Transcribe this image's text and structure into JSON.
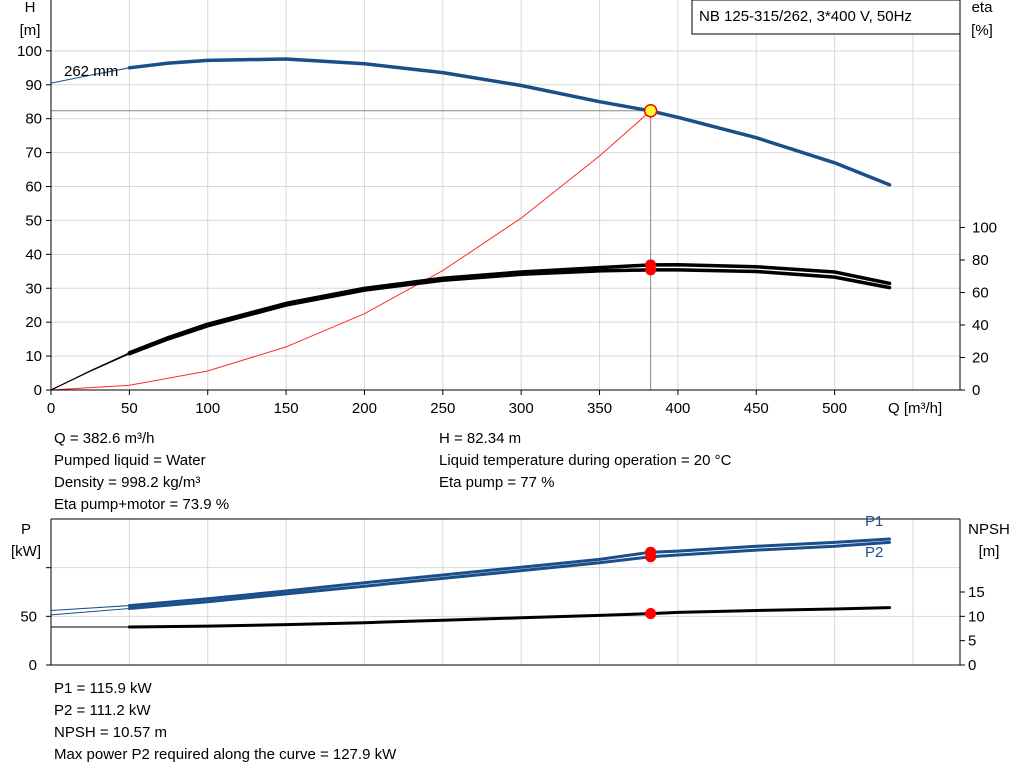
{
  "chart_data": [
    {
      "type": "line",
      "title": "NB 125-315/262, 3*400 V, 50Hz",
      "xlabel": "Q [m³/h]",
      "ylabel": "H\n[m]",
      "ylabel_right": "eta\n[%]",
      "xlim": [
        0,
        580
      ],
      "ylim": [
        0,
        115
      ],
      "y2lim": [
        0,
        100
      ],
      "x_ticks": [
        0,
        50,
        100,
        150,
        200,
        250,
        300,
        350,
        400,
        450,
        500
      ],
      "y_ticks": [
        0,
        10,
        20,
        30,
        40,
        50,
        60,
        70,
        80,
        90,
        100
      ],
      "y2_ticks": [
        0,
        20,
        40,
        60,
        80,
        100
      ],
      "grid": true,
      "curve_label": "262 mm",
      "series": [
        {
          "axis": "left",
          "color": "#1b4f8a",
          "x": [
            0,
            25,
            50,
            75,
            100,
            150,
            200,
            250,
            300,
            350,
            382.6,
            400,
            450,
            500,
            535
          ],
          "y": [
            90.5,
            92.8,
            95,
            96.4,
            97.2,
            97.6,
            96.2,
            93.6,
            89.8,
            85,
            82.3,
            80.4,
            74.4,
            67,
            60.5
          ]
        },
        {
          "axis": "right",
          "color": "#000000",
          "x": [
            0,
            25,
            50,
            75,
            100,
            150,
            200,
            250,
            300,
            350,
            382.6,
            400,
            450,
            500,
            535
          ],
          "y": [
            0,
            11.5,
            22.3,
            31.5,
            39.5,
            52.3,
            61.5,
            67.5,
            71.2,
            73.3,
            73.9,
            73.9,
            72.9,
            69.5,
            63
          ]
        },
        {
          "axis": "right",
          "color": "#000000",
          "x": [
            0,
            25,
            50,
            75,
            100,
            150,
            200,
            250,
            300,
            350,
            382.6,
            400,
            450,
            500,
            535
          ],
          "y": [
            0,
            11.8,
            22.9,
            32.3,
            40.5,
            53.3,
            62.5,
            68.8,
            72.6,
            75.3,
            77,
            77.1,
            75.9,
            72.6,
            65.6
          ]
        },
        {
          "axis": "left",
          "color": "#ff2a2a",
          "role": "system-curve",
          "x": [
            0,
            50,
            100,
            150,
            200,
            250,
            300,
            350,
            382.6
          ],
          "y": [
            0,
            1.4,
            5.6,
            12.7,
            22.5,
            35.2,
            50.7,
            69,
            82.3
          ]
        }
      ],
      "operating_point": {
        "x": 382.6,
        "h": 82.34,
        "eta_pump_motor": 73.9,
        "eta_pump": 77
      }
    },
    {
      "type": "line",
      "ylabel": "P\n[kW]",
      "ylabel_right": "NPSH\n[m]",
      "xlim": [
        0,
        580
      ],
      "ylim": [
        0,
        150
      ],
      "y2lim": [
        0,
        30
      ],
      "y_ticks": [
        0,
        50
      ],
      "y2_ticks": [
        0,
        5,
        10,
        15
      ],
      "grid": true,
      "series": [
        {
          "name": "P1",
          "axis": "left",
          "color": "#1b4f8a",
          "x": [
            0,
            50,
            100,
            150,
            200,
            250,
            300,
            350,
            382.6,
            400,
            450,
            500,
            535
          ],
          "y": [
            56,
            61,
            68,
            76,
            84.5,
            92.5,
            100.5,
            108.5,
            115.9,
            117,
            122,
            126,
            129.5
          ]
        },
        {
          "name": "P2",
          "axis": "left",
          "color": "#1b4f8a",
          "x": [
            0,
            50,
            100,
            150,
            200,
            250,
            300,
            350,
            382.6,
            400,
            450,
            500,
            535
          ],
          "y": [
            51.5,
            58,
            65,
            73,
            81,
            89,
            97,
            105,
            111.2,
            113,
            118,
            122,
            126
          ]
        },
        {
          "name": "NPSH",
          "axis": "right",
          "color": "#000000",
          "x": [
            0,
            50,
            100,
            150,
            200,
            250,
            300,
            350,
            382.6,
            400,
            450,
            500,
            535
          ],
          "y": [
            7.8,
            7.8,
            8,
            8.3,
            8.7,
            9.2,
            9.7,
            10.2,
            10.57,
            10.8,
            11.2,
            11.5,
            11.8
          ]
        }
      ],
      "operating_point": {
        "x": 382.6,
        "p1": 115.9,
        "p2": 111.2,
        "npsh": 10.57
      }
    }
  ],
  "info_top": {
    "left": [
      "Q = 382.6 m³/h",
      "Pumped liquid = Water",
      "Density = 998.2 kg/m³",
      "Eta pump+motor = 73.9 %"
    ],
    "right": [
      "H = 82.34 m",
      "Liquid temperature during operation = 20 °C",
      "Eta pump = 77 %"
    ]
  },
  "info_bottom": [
    "P1 = 115.9 kW",
    "P2 = 111.2 kW",
    "NPSH = 10.57 m",
    "Max power P2 required along the curve = 127.9 kW"
  ]
}
